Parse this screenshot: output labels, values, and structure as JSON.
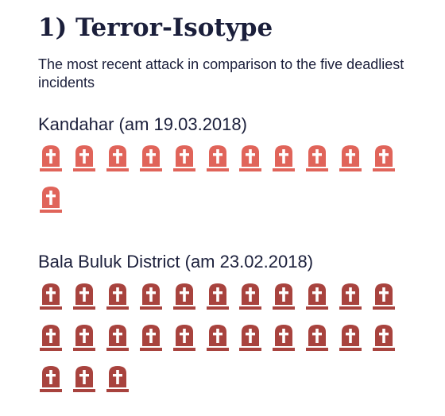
{
  "title": "1) Terror-Isotype",
  "subtitle": "The most recent attack in comparison to the five deadliest incidents",
  "chart_data": {
    "type": "isotype",
    "unit": "tombstone",
    "groups": [
      {
        "label": "Kandahar (am 19.03.2018)",
        "value": 12,
        "color": "#e0645a"
      },
      {
        "label": "Bala Buluk District (am 23.02.2018)",
        "value": 25,
        "color": "#a8433e"
      }
    ]
  }
}
